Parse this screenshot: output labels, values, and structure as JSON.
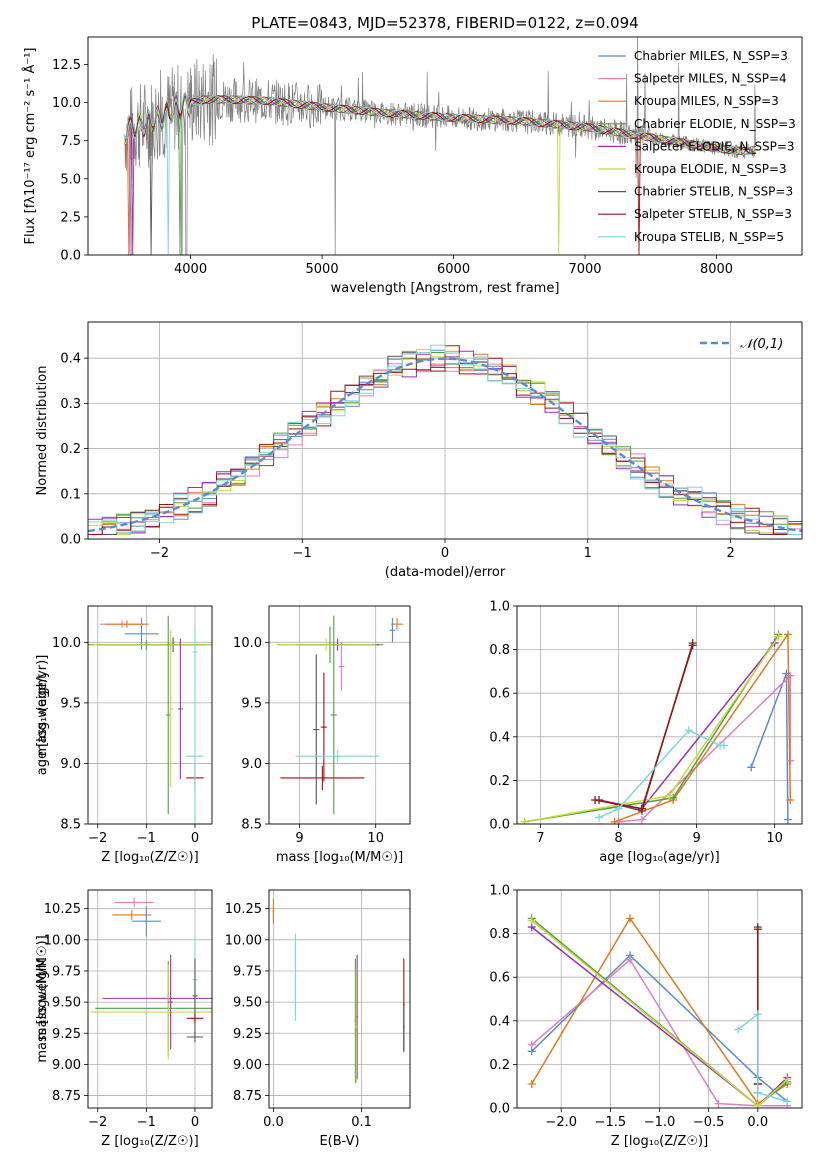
{
  "figure": {
    "title": "PLATE=0843, MJD=52378, FIBERID=0122, z=0.094"
  },
  "chart_data": [
    {
      "type": "line",
      "panel": "spectrum",
      "title": "PLATE=0843, MJD=52378, FIBERID=0122, z=0.094",
      "xlabel": "wavelength [Angstrom, rest frame]",
      "ylabel": "Flux [fλ10⁻¹⁷ erg cm⁻² s⁻¹ Å⁻¹]",
      "xlim": [
        3220,
        8650
      ],
      "ylim": [
        0,
        14.3
      ],
      "xticks": [
        4000,
        5000,
        6000,
        7000,
        8000
      ],
      "yticks": [
        0.0,
        2.5,
        5.0,
        7.5,
        10.0,
        12.5
      ],
      "grid": false,
      "legend_position": "top-right",
      "data_series": {
        "name": "data",
        "color": "#808080"
      },
      "series": [
        {
          "name": "Chabrier MILES, N_SSP=3",
          "color": "#5b8bd8",
          "spike_at": 3540
        },
        {
          "name": "Salpeter MILES, N_SSP=4",
          "color": "#e27fbd",
          "spike_at": 3545
        },
        {
          "name": "Kroupa MILES, N_SSP=3",
          "color": "#e07a1f",
          "spike_at": 3530
        },
        {
          "name": "Chabrier ELODIE, N_SSP=3",
          "color": "#4fa33f",
          "spike_at": 3920
        },
        {
          "name": "Salpeter ELODIE, N_SSP=3",
          "color": "#9b30b0",
          "spike_at": 3560
        },
        {
          "name": "Kroupa ELODIE, N_SSP=3",
          "color": "#c8d840",
          "spike_at": 6800
        },
        {
          "name": "Chabrier STELIB, N_SSP=3",
          "color": "#555555",
          "spike_at": 3700
        },
        {
          "name": "Salpeter STELIB, N_SSP=3",
          "color": "#a01010",
          "spike_at": 7410
        },
        {
          "name": "Kroupa STELIB, N_SSP=5",
          "color": "#7fd6dc",
          "spike_at": 3830
        }
      ],
      "continuum_points": [
        [
          3500,
          8.0
        ],
        [
          3560,
          8.3
        ],
        [
          3650,
          8.6
        ],
        [
          3750,
          8.9
        ],
        [
          3900,
          9.7
        ],
        [
          4100,
          10.2
        ],
        [
          4300,
          10.2
        ],
        [
          4600,
          10.1
        ],
        [
          5000,
          9.7
        ],
        [
          5500,
          9.3
        ],
        [
          6000,
          9.0
        ],
        [
          6500,
          8.8
        ],
        [
          7000,
          8.4
        ],
        [
          7500,
          7.7
        ],
        [
          8000,
          7.0
        ],
        [
          8200,
          6.8
        ],
        [
          8300,
          6.9
        ]
      ]
    },
    {
      "type": "line",
      "panel": "residuals",
      "xlabel": "(data-model)/error",
      "ylabel": "Normed distribution",
      "xlim": [
        -2.5,
        2.5
      ],
      "ylim": [
        0,
        0.48
      ],
      "xticks": [
        -2,
        -1,
        0,
        1,
        2
      ],
      "yticks": [
        0.0,
        0.1,
        0.2,
        0.3,
        0.4
      ],
      "grid": true,
      "legend_position": "top-right",
      "reference": {
        "name": "𝒩(0,1)",
        "color": "#5b8bd8"
      },
      "bin_width": 0.1
    },
    {
      "type": "scatter",
      "panel": "age-vs-Z",
      "xlabel": "Z [log₁₀(Z/Z☉)]",
      "ylabel": "age [log₁₀(age/yr)]",
      "xlim": [
        -2.2,
        0.35
      ],
      "ylim": [
        8.5,
        10.3
      ],
      "xticks": [
        -2,
        -1,
        0
      ],
      "yticks": [
        8.5,
        9.0,
        9.5,
        10.0
      ],
      "grid": true,
      "errorbars": [
        {
          "x": -1.1,
          "y": 10.07,
          "xerr": 0.35,
          "yerr": 0.13,
          "color": "#5b8bd8"
        },
        {
          "x": -1.5,
          "y": 10.15,
          "xerr": 0.45,
          "yerr": 0.03,
          "color": "#e27fbd"
        },
        {
          "x": -1.4,
          "y": 10.15,
          "xerr": 0.45,
          "yerr": 0.03,
          "color": "#e07a1f"
        },
        {
          "x": -1.0,
          "y": 9.98,
          "xerr": 1.2,
          "yerr": 0.04,
          "color": "#4fa33f"
        },
        {
          "x": -0.45,
          "y": 9.98,
          "xerr": 1.55,
          "yerr": 0.06,
          "color": "#555555"
        },
        {
          "x": -0.5,
          "y": 9.98,
          "xerr": 1.6,
          "yerr": 0.04,
          "color": "#c8d840"
        },
        {
          "x": -0.55,
          "y": 9.4,
          "xerr": 0.05,
          "yerr": 0.82,
          "color": "#4fa33f"
        },
        {
          "x": -0.5,
          "y": 9.45,
          "xerr": 0.05,
          "yerr": 0.65,
          "color": "#c8d840"
        },
        {
          "x": -0.3,
          "y": 9.45,
          "xerr": 0.05,
          "yerr": 0.58,
          "color": "#9b30b0"
        },
        {
          "x": 0.0,
          "y": 9.92,
          "xerr": 0.05,
          "yerr": 0.2,
          "color": "#7fd6dc"
        },
        {
          "x": 0.0,
          "y": 8.88,
          "xerr": 0.18,
          "yerr": 0.12,
          "color": "#a01010"
        },
        {
          "x": 0.0,
          "y": 9.06,
          "xerr": 0.18,
          "yerr": 0.7,
          "color": "#7fd6dc"
        }
      ]
    },
    {
      "type": "scatter",
      "panel": "age-vs-mass",
      "xlabel": "mass [log₁₀(M/M☉)]",
      "ylabel": "",
      "xlim": [
        8.6,
        10.45
      ],
      "ylim": [
        8.5,
        10.3
      ],
      "xticks": [
        9,
        10
      ],
      "yticks": [
        8.5,
        9.0,
        9.5,
        10.0
      ],
      "grid": true,
      "errorbars": [
        {
          "x": 10.28,
          "y": 10.15,
          "xerr": 0.08,
          "yerr": 0.05,
          "color": "#e07a1f"
        },
        {
          "x": 10.22,
          "y": 10.1,
          "xerr": 0.04,
          "yerr": 0.1,
          "color": "#5b8bd8"
        },
        {
          "x": 9.4,
          "y": 9.98,
          "xerr": 0.7,
          "yerr": 0.15,
          "color": "#4fa33f"
        },
        {
          "x": 9.5,
          "y": 9.98,
          "xerr": 0.55,
          "yerr": 0.05,
          "color": "#9b30b0"
        },
        {
          "x": 9.35,
          "y": 9.98,
          "xerr": 0.65,
          "yerr": 0.05,
          "color": "#c8d840"
        },
        {
          "x": 9.45,
          "y": 9.4,
          "xerr": 0.04,
          "yerr": 0.82,
          "color": "#4fa33f"
        },
        {
          "x": 9.32,
          "y": 9.3,
          "xerr": 0.04,
          "yerr": 0.45,
          "color": "#a01010"
        },
        {
          "x": 9.22,
          "y": 9.28,
          "xerr": 0.04,
          "yerr": 0.62,
          "color": "#555555"
        },
        {
          "x": 9.3,
          "y": 8.88,
          "xerr": 0.55,
          "yerr": 0.1,
          "color": "#a01010"
        },
        {
          "x": 9.5,
          "y": 9.06,
          "xerr": 0.55,
          "yerr": 0.05,
          "color": "#7fd6dc"
        },
        {
          "x": 9.55,
          "y": 9.8,
          "xerr": 0.04,
          "yerr": 0.2,
          "color": "#e27fbd"
        }
      ]
    },
    {
      "type": "line",
      "panel": "mass-weight-vs-age",
      "xlabel": "age [log₁₀(age/yr)]",
      "ylabel": "mass weight",
      "xlim": [
        6.7,
        10.35
      ],
      "ylim": [
        0,
        1.0
      ],
      "xticks": [
        7,
        8,
        9,
        10
      ],
      "yticks": [
        0.0,
        0.2,
        0.4,
        0.6,
        0.8,
        1.0
      ],
      "grid": true,
      "series": [
        {
          "name": "Chabrier MILES",
          "color": "#5b8bd8",
          "x": [
            9.7,
            10.15,
            10.17
          ],
          "y": [
            0.26,
            0.69,
            0.02
          ]
        },
        {
          "name": "Salpeter MILES",
          "color": "#e27fbd",
          "x": [
            8.0,
            8.3,
            10.2,
            10.2
          ],
          "y": [
            0.01,
            0.02,
            0.68,
            0.29
          ]
        },
        {
          "name": "Kroupa MILES",
          "color": "#e07a1f",
          "x": [
            7.95,
            8.7,
            10.17,
            10.2
          ],
          "y": [
            0.01,
            0.11,
            0.87,
            0.11
          ]
        },
        {
          "name": "Chabrier ELODIE",
          "color": "#4fa33f",
          "x": [
            6.8,
            8.7,
            10.05
          ],
          "y": [
            0.01,
            0.12,
            0.87
          ]
        },
        {
          "name": "Salpeter ELODIE",
          "color": "#9b30b0",
          "x": [
            7.75,
            8.3,
            10.0
          ],
          "y": [
            0.11,
            0.07,
            0.83
          ]
        },
        {
          "name": "Kroupa ELODIE",
          "color": "#c8d840",
          "x": [
            6.8,
            8.65,
            10.05
          ],
          "y": [
            0.01,
            0.13,
            0.86
          ]
        },
        {
          "name": "Chabrier STELIB",
          "color": "#555555",
          "x": [
            7.75,
            8.3,
            8.95
          ],
          "y": [
            0.11,
            0.06,
            0.83
          ]
        },
        {
          "name": "Salpeter STELIB",
          "color": "#a01010",
          "x": [
            7.7,
            8.3,
            8.95
          ],
          "y": [
            0.11,
            0.07,
            0.82
          ]
        },
        {
          "name": "Kroupa STELIB",
          "color": "#7fd6dc",
          "x": [
            7.75,
            8.0,
            8.9,
            9.3,
            9.35
          ],
          "y": [
            0.03,
            0.07,
            0.43,
            0.36,
            0.36
          ]
        }
      ]
    },
    {
      "type": "scatter",
      "panel": "mass-vs-Z",
      "xlabel": "Z [log₁₀(Z/Z☉)]",
      "ylabel": "mass [log₁₀(M/M☉)]",
      "xlim": [
        -2.2,
        0.35
      ],
      "ylim": [
        8.65,
        10.4
      ],
      "xticks": [
        -2,
        -1,
        0
      ],
      "yticks": [
        8.75,
        9.0,
        9.25,
        9.5,
        9.75,
        10.0,
        10.25
      ],
      "grid": true,
      "errorbars": [
        {
          "x": -1.25,
          "y": 10.3,
          "xerr": 0.4,
          "yerr": 0.04,
          "color": "#e27fbd"
        },
        {
          "x": -1.3,
          "y": 10.2,
          "xerr": 0.4,
          "yerr": 0.04,
          "color": "#e07a1f"
        },
        {
          "x": -1.0,
          "y": 10.15,
          "xerr": 0.3,
          "yerr": 0.12,
          "color": "#5b8bd8"
        },
        {
          "x": -0.55,
          "y": 9.53,
          "xerr": 1.35,
          "yerr": 0.04,
          "color": "#9b30b0"
        },
        {
          "x": -0.55,
          "y": 9.45,
          "xerr": 1.5,
          "yerr": 0.38,
          "color": "#4fa33f"
        },
        {
          "x": -0.55,
          "y": 9.42,
          "xerr": 1.6,
          "yerr": 0.38,
          "color": "#c8d840"
        },
        {
          "x": -0.5,
          "y": 9.5,
          "xerr": 0.05,
          "yerr": 0.38,
          "color": "#9b30b0"
        },
        {
          "x": 0.0,
          "y": 9.68,
          "xerr": 0.05,
          "yerr": 0.35,
          "color": "#7fd6dc"
        },
        {
          "x": 0.0,
          "y": 9.55,
          "xerr": 0.05,
          "yerr": 0.3,
          "color": "#555555"
        },
        {
          "x": 0.0,
          "y": 9.37,
          "xerr": 0.17,
          "yerr": 0.04,
          "color": "#a01010"
        },
        {
          "x": 0.0,
          "y": 9.22,
          "xerr": 0.17,
          "yerr": 0.04,
          "color": "#555555"
        }
      ]
    },
    {
      "type": "scatter",
      "panel": "mass-vs-EBV",
      "xlabel": "E(B-V)",
      "ylabel": "",
      "xlim": [
        -0.005,
        0.155
      ],
      "ylim": [
        8.65,
        10.4
      ],
      "xticks": [
        0.0,
        0.1
      ],
      "yticks": [
        8.75,
        9.0,
        9.25,
        9.5,
        9.75,
        10.0,
        10.25
      ],
      "grid": true,
      "errorbars": [
        {
          "x": 0.0,
          "y": 10.23,
          "xerr": 0.001,
          "yerr": 0.1,
          "color": "#e07a1f"
        },
        {
          "x": 0.025,
          "y": 9.7,
          "xerr": 0.001,
          "yerr": 0.35,
          "color": "#7fd6dc"
        },
        {
          "x": 0.093,
          "y": 9.35,
          "xerr": 0.001,
          "yerr": 0.5,
          "color": "#4fa33f"
        },
        {
          "x": 0.095,
          "y": 9.38,
          "xerr": 0.001,
          "yerr": 0.5,
          "color": "#9b30b0"
        },
        {
          "x": 0.094,
          "y": 9.3,
          "xerr": 0.001,
          "yerr": 0.45,
          "color": "#c8d840"
        },
        {
          "x": 0.148,
          "y": 9.48,
          "xerr": 0.001,
          "yerr": 0.37,
          "color": "#a01010"
        },
        {
          "x": 0.148,
          "y": 9.3,
          "xerr": 0.001,
          "yerr": 0.2,
          "color": "#555555"
        }
      ]
    },
    {
      "type": "line",
      "panel": "mass-weight-vs-Z",
      "xlabel": "Z [log₁₀(Z/Z☉)]",
      "ylabel": "mass weight",
      "xlim": [
        -2.45,
        0.45
      ],
      "ylim": [
        0,
        1.0
      ],
      "xticks": [
        -2.0,
        -1.5,
        -1.0,
        -0.5,
        0.0
      ],
      "yticks": [
        0.0,
        0.2,
        0.4,
        0.6,
        0.8,
        1.0
      ],
      "grid": true,
      "series": [
        {
          "name": "Chabrier MILES",
          "color": "#5b8bd8",
          "x": [
            -2.3,
            -1.3,
            0.0,
            0.3
          ],
          "y": [
            0.26,
            0.7,
            0.14,
            0.03
          ]
        },
        {
          "name": "Salpeter MILES",
          "color": "#e27fbd",
          "x": [
            -2.3,
            -1.3,
            -0.4,
            0.0,
            0.3
          ],
          "y": [
            0.29,
            0.68,
            0.02,
            0.01,
            0.01
          ]
        },
        {
          "name": "Kroupa MILES",
          "color": "#e07a1f",
          "x": [
            -2.3,
            -1.3,
            0.0,
            0.3
          ],
          "y": [
            0.11,
            0.87,
            0.02,
            0.11
          ]
        },
        {
          "name": "Chabrier ELODIE",
          "color": "#4fa33f",
          "x": [
            -2.3,
            0.0,
            0.3
          ],
          "y": [
            0.87,
            0.01,
            0.12
          ]
        },
        {
          "name": "Salpeter ELODIE",
          "color": "#9b30b0",
          "x": [
            -2.3,
            0.0,
            0.3
          ],
          "y": [
            0.83,
            0.01,
            0.14
          ]
        },
        {
          "name": "Kroupa ELODIE",
          "color": "#c8d840",
          "x": [
            -2.3,
            0.0,
            0.3
          ],
          "y": [
            0.86,
            0.01,
            0.13
          ]
        },
        {
          "name": "Chabrier STELIB",
          "color": "#555555",
          "x": [
            0.0,
            0.0,
            0.0
          ],
          "y": [
            0.83,
            0.11,
            0.11
          ]
        },
        {
          "name": "Salpeter STELIB",
          "color": "#a01010",
          "x": [
            0.0,
            0.0,
            0.0
          ],
          "y": [
            0.82,
            0.11,
            0.07
          ]
        },
        {
          "name": "Kroupa STELIB",
          "color": "#7fd6dc",
          "x": [
            -0.2,
            0.0,
            0.0,
            0.3
          ],
          "y": [
            0.36,
            0.43,
            0.07,
            0.03
          ]
        }
      ]
    }
  ]
}
